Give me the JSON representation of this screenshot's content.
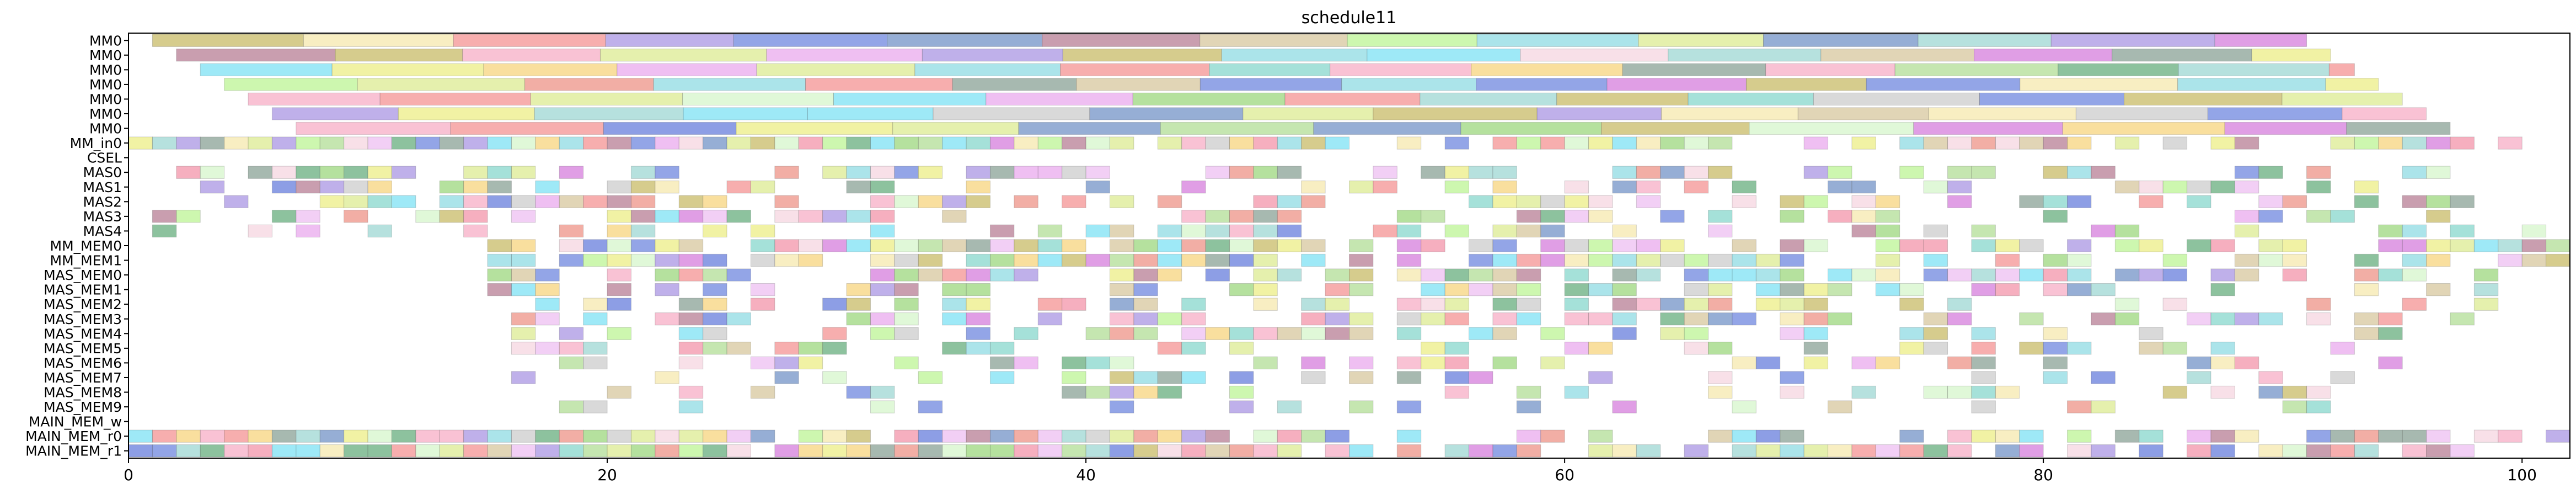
{
  "chart_data": {
    "type": "gantt",
    "title": "schedule11",
    "xlabel": "",
    "ylabel": "",
    "xlim": [
      0,
      102
    ],
    "x_ticks": [
      "0",
      "20",
      "40",
      "60",
      "80",
      "100"
    ],
    "x_tick_values": [
      0,
      20,
      40,
      60,
      80,
      100
    ],
    "grid": false,
    "legend": "none",
    "rows": [
      "MM0",
      "MM0",
      "MM0",
      "MM0",
      "MM0",
      "MM0",
      "MM0",
      "MM_in0",
      "CSEL",
      "MAS0",
      "MAS1",
      "MAS2",
      "MAS3",
      "MAS4",
      "MM_MEM0",
      "MM_MEM1",
      "MAS_MEM0",
      "MAS_MEM1",
      "MAS_MEM2",
      "MAS_MEM3",
      "MAS_MEM4",
      "MAS_MEM5",
      "MAS_MEM6",
      "MAS_MEM7",
      "MAS_MEM8",
      "MAS_MEM9",
      "MAIN_MEM_w",
      "MAIN_MEM_r0",
      "MAIN_MEM_r1"
    ],
    "row_spans": [
      [
        1,
        91
      ],
      [
        2,
        92
      ],
      [
        3,
        93
      ],
      [
        4,
        94
      ],
      [
        5,
        95
      ],
      [
        6,
        96
      ],
      [
        7,
        97
      ],
      [
        0,
        101
      ],
      [
        0,
        0
      ],
      [
        1,
        98
      ],
      [
        1,
        99
      ],
      [
        1,
        100
      ],
      [
        1,
        101
      ],
      [
        1,
        102
      ],
      [
        15,
        102
      ],
      [
        15,
        102
      ],
      [
        15,
        101
      ],
      [
        15,
        100
      ],
      [
        16,
        99
      ],
      [
        16,
        98
      ],
      [
        16,
        97
      ],
      [
        16,
        96
      ],
      [
        15,
        95
      ],
      [
        16,
        94
      ],
      [
        16,
        93
      ],
      [
        17,
        92
      ],
      [
        0,
        0
      ],
      [
        0,
        102
      ],
      [
        0,
        98
      ]
    ],
    "row_density": [
      1,
      1,
      1,
      1,
      1,
      1,
      1,
      0.95,
      0,
      0.55,
      0.55,
      0.55,
      0.55,
      0.5,
      0.9,
      0.85,
      0.7,
      0.65,
      0.65,
      0.6,
      0.5,
      0.45,
      0.45,
      0.4,
      0.4,
      0.35,
      0,
      1,
      1
    ],
    "block_alpha": 0.55,
    "palette": [
      "#e6e85a",
      "#ef6d8a",
      "#f3c6d6",
      "#4fd7f0",
      "#2f4fcf",
      "#9c4f6d",
      "#e28ae8",
      "#c8b27a",
      "#f4c44e",
      "#b5a22f",
      "#3f6cb3",
      "#7ac9c3",
      "#c64fd0",
      "#79c94f",
      "#d0e36a",
      "#f48fb0",
      "#5bc8ba",
      "#e86b5b",
      "#95d26f",
      "#2f8f4f",
      "#f06b6b",
      "#b9b9b9",
      "#e8a8ec",
      "#a4f06e",
      "#3b5bd4",
      "#66cdd9",
      "#8b6fd8",
      "#c6f3b8",
      "#5f7f6f",
      "#f2e090"
    ]
  }
}
